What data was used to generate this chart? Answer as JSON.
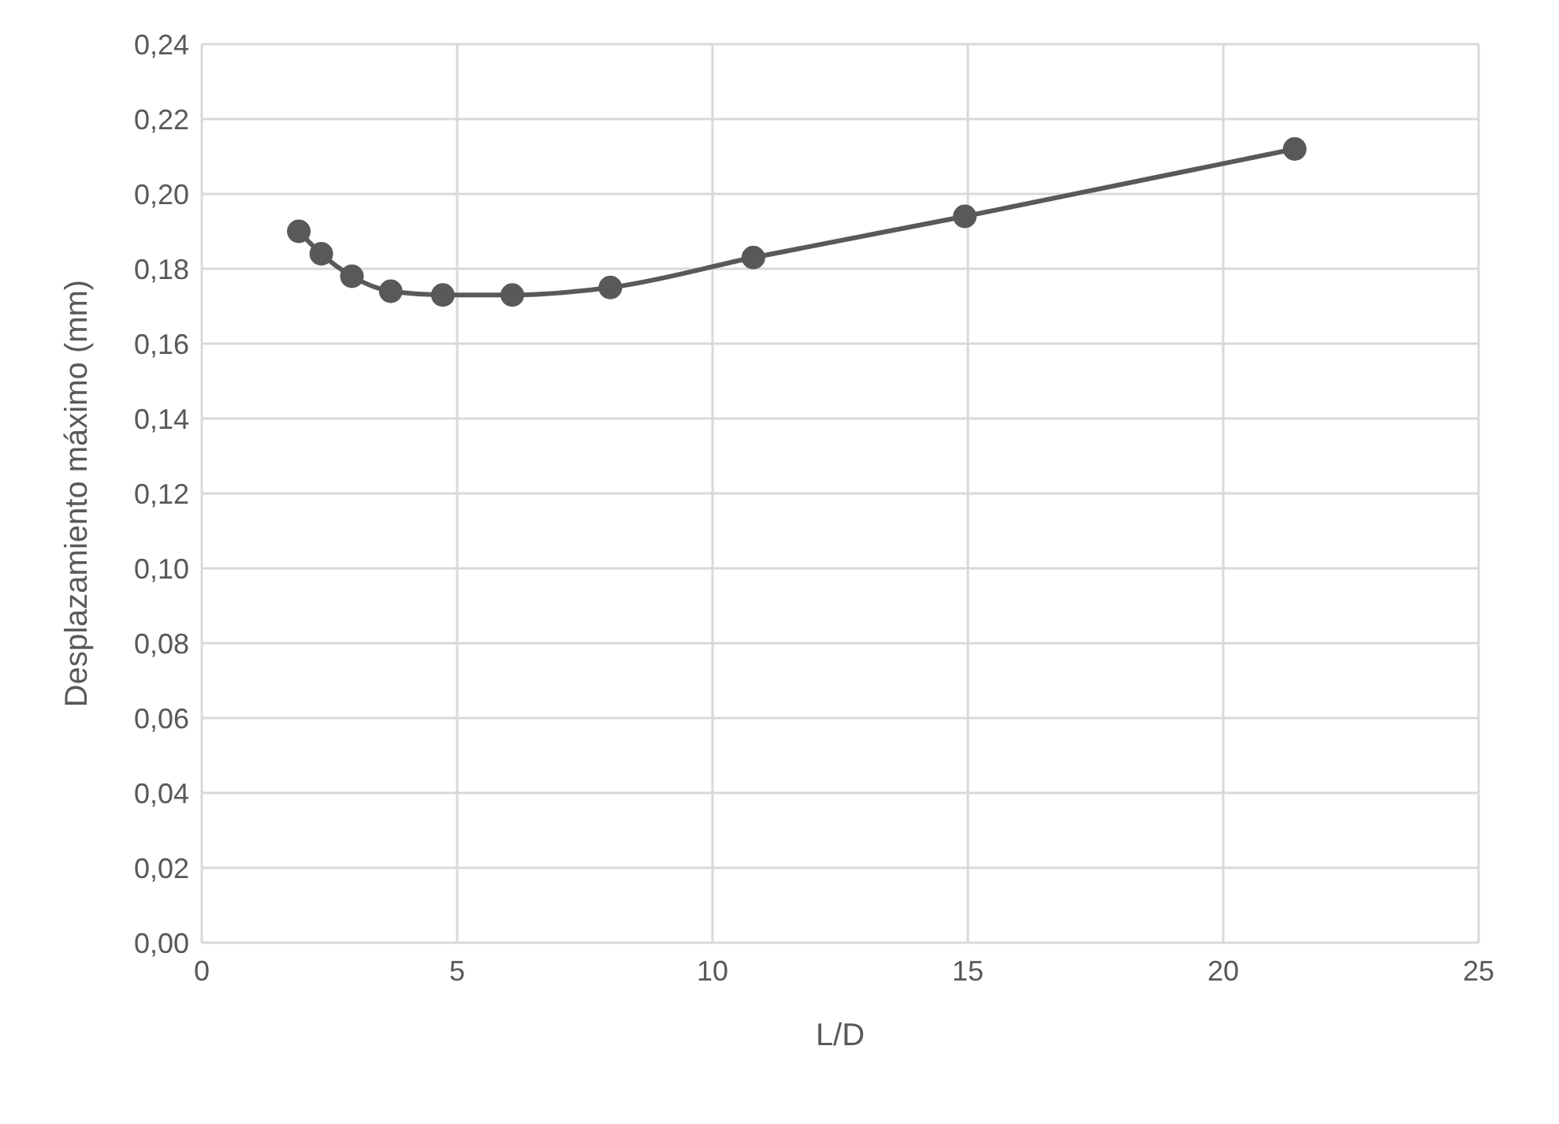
{
  "chart_data": {
    "type": "line",
    "xlabel": "L/D",
    "ylabel": "Desplazamiento máximo (mm)",
    "x": [
      1.9,
      2.34,
      2.94,
      3.7,
      4.72,
      6.08,
      8.0,
      10.8,
      14.94,
      21.4
    ],
    "series": [
      {
        "color": "#595959",
        "values": [
          0.19,
          0.184,
          0.178,
          0.174,
          0.173,
          0.173,
          0.175,
          0.183,
          0.194,
          0.212
        ]
      }
    ],
    "xlim": [
      0,
      25
    ],
    "xticks": [
      0,
      5,
      10,
      15,
      20,
      25
    ],
    "ylim": [
      0,
      0.24
    ],
    "yticks": [
      {
        "value": 0,
        "label": "0,00"
      },
      {
        "value": 0.02,
        "label": "0,02"
      },
      {
        "value": 0.04,
        "label": "0,04"
      },
      {
        "value": 0.06,
        "label": "0,06"
      },
      {
        "value": 0.08,
        "label": "0,08"
      },
      {
        "value": 0.1,
        "label": "0,10"
      },
      {
        "value": 0.12,
        "label": "0,12"
      },
      {
        "value": 0.14,
        "label": "0,14"
      },
      {
        "value": 0.16,
        "label": "0,16"
      },
      {
        "value": 0.18,
        "label": "0,18"
      },
      {
        "value": 0.2,
        "label": "0,20"
      },
      {
        "value": 0.22,
        "label": "0,22"
      },
      {
        "value": 0.24,
        "label": "0,24"
      }
    ],
    "grid": true,
    "marker": "circle",
    "line_style": "solid",
    "legend": false
  }
}
